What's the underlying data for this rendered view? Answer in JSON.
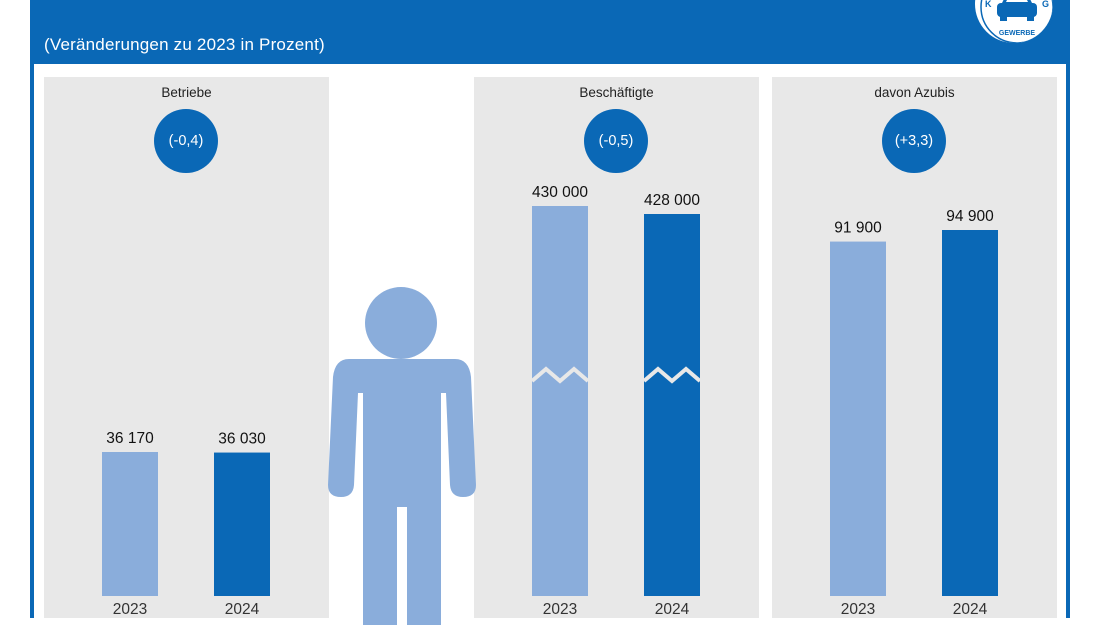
{
  "header": {
    "subtitle": "(Veränderungen zu 2023 in Prozent)"
  },
  "colors": {
    "header_blue": "#0a68b6",
    "bar_2023": "#8aaddb",
    "bar_2024": "#0a68b6",
    "panel_bg": "#e8e8e8"
  },
  "logo": {
    "text_top": "K",
    "text_right": "G",
    "text_bottom": "GEWERBE",
    "icon": "car-icon"
  },
  "figure_icon": "person-icon",
  "chart_data": [
    {
      "type": "bar",
      "title": "Betriebe",
      "change": "(-0,4)",
      "categories": [
        "2023",
        "2024"
      ],
      "values": [
        36170,
        36030
      ],
      "value_labels": [
        "36 170",
        "36 030"
      ],
      "axis_break": false
    },
    {
      "type": "bar",
      "title": "Beschäftigte",
      "change": "(-0,5)",
      "categories": [
        "2023",
        "2024"
      ],
      "values": [
        430000,
        428000
      ],
      "value_labels": [
        "430 000",
        "428 000"
      ],
      "axis_break": true
    },
    {
      "type": "bar",
      "title": "davon Azubis",
      "change": "(+3,3)",
      "categories": [
        "2023",
        "2024"
      ],
      "values": [
        91900,
        94900
      ],
      "value_labels": [
        "91 900",
        "94 900"
      ],
      "axis_break": false
    }
  ]
}
